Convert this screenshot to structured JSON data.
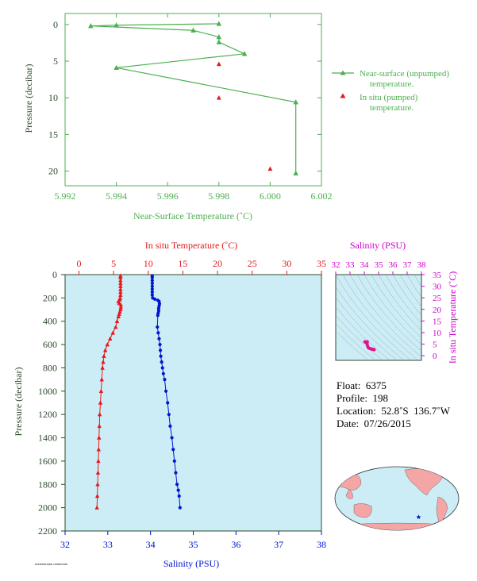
{
  "chart_data": [
    {
      "type": "line",
      "id": "near-surface",
      "xlabel": "Near-Surface Temperature (˚C)",
      "ylabel": "Pressure (decibar)",
      "xlim": [
        5.992,
        6.002
      ],
      "ylim": [
        22,
        -1.5
      ],
      "xticks": [
        "5.992",
        "5.994",
        "5.996",
        "5.998",
        "6.000",
        "6.002"
      ],
      "yticks": [
        "0",
        "5",
        "10",
        "15",
        "20"
      ],
      "xtick_values": [
        5.992,
        5.994,
        5.996,
        5.998,
        6.0,
        6.002
      ],
      "ytick_values": [
        0,
        5,
        10,
        15,
        20
      ],
      "series": [
        {
          "name": "Near-surface (unpumped) temperature.",
          "color": "#4caf50",
          "marker": "triangle",
          "x": [
            5.998,
            5.994,
            5.993,
            5.997,
            5.998,
            5.998,
            5.999,
            5.994,
            6.001,
            6.001
          ],
          "y": [
            -0.1,
            0.1,
            0.2,
            0.8,
            1.7,
            2.4,
            4.0,
            5.9,
            10.6,
            20.3
          ]
        },
        {
          "name": "In situ (pumped) temperature.",
          "color": "#e41a1c",
          "marker": "triangle",
          "x": [
            5.998,
            5.998,
            6.0
          ],
          "y": [
            5.4,
            10.0,
            19.7
          ]
        }
      ],
      "legend": [
        {
          "line1": "Near-surface (unpumped)",
          "line2": "temperature."
        },
        {
          "line1": "In situ (pumped)",
          "line2": "temperature."
        }
      ]
    },
    {
      "type": "line",
      "id": "profile",
      "top_xlabel": "In situ Temperature (˚C)",
      "bottom_xlabel": "Salinity (PSU)",
      "ylabel": "Pressure (decibar)",
      "temp_lim": [
        -2,
        35
      ],
      "sal_lim": [
        32,
        38
      ],
      "ylim": [
        2200,
        0
      ],
      "temp_ticks": [
        "0",
        "5",
        "10",
        "15",
        "20",
        "25",
        "30",
        "35"
      ],
      "temp_tick_values": [
        0,
        5,
        10,
        15,
        20,
        25,
        30,
        35
      ],
      "sal_ticks": [
        "32",
        "33",
        "34",
        "35",
        "36",
        "37",
        "38"
      ],
      "sal_tick_values": [
        32,
        33,
        34,
        35,
        36,
        37,
        38
      ],
      "yticks": [
        "0",
        "200",
        "400",
        "600",
        "800",
        "1000",
        "1200",
        "1400",
        "1600",
        "1800",
        "2000",
        "2200"
      ],
      "ytick_values": [
        0,
        200,
        400,
        600,
        800,
        1000,
        1200,
        1400,
        1600,
        1800,
        2000,
        2200
      ],
      "background": "#cdedf6",
      "temperature": {
        "color": "#e41a1c",
        "marker": "triangle",
        "x": [
          6.0,
          6.0,
          6.0,
          6.0,
          6.0,
          6.0,
          6.0,
          6.0,
          5.95,
          5.9,
          5.7,
          5.8,
          6.05,
          6.05,
          6.0,
          5.9,
          5.8,
          5.7,
          5.5,
          5.3,
          4.9,
          4.5,
          4.1,
          3.8,
          3.6,
          3.5,
          3.4,
          3.3,
          3.2,
          3.1,
          3.0,
          2.95,
          2.9,
          2.85,
          2.8,
          2.75,
          2.7,
          2.65,
          2.6
        ],
        "y": [
          10,
          25,
          50,
          75,
          100,
          125,
          150,
          175,
          200,
          215,
          230,
          245,
          260,
          280,
          300,
          320,
          340,
          360,
          400,
          450,
          500,
          550,
          600,
          650,
          700,
          750,
          800,
          900,
          1000,
          1100,
          1200,
          1300,
          1400,
          1500,
          1600,
          1700,
          1800,
          1900,
          2000
        ]
      },
      "salinity": {
        "color": "#0015d0",
        "marker": "dot",
        "x": [
          34.04,
          34.04,
          34.04,
          34.04,
          34.04,
          34.04,
          34.04,
          34.04,
          34.05,
          34.1,
          34.17,
          34.2,
          34.21,
          34.2,
          34.19,
          34.19,
          34.18,
          34.17,
          34.16,
          34.18,
          34.2,
          34.22,
          34.23,
          34.24,
          34.26,
          34.28,
          34.3,
          34.33,
          34.36,
          34.4,
          34.43,
          34.46,
          34.5,
          34.53,
          34.56,
          34.59,
          34.62,
          34.65,
          34.67,
          34.69
        ],
        "y": [
          10,
          25,
          50,
          75,
          100,
          125,
          150,
          175,
          200,
          210,
          220,
          230,
          250,
          270,
          290,
          310,
          330,
          350,
          450,
          500,
          550,
          600,
          650,
          700,
          750,
          800,
          850,
          900,
          1000,
          1100,
          1200,
          1300,
          1400,
          1500,
          1600,
          1700,
          1800,
          1850,
          1900,
          2000
        ]
      }
    },
    {
      "type": "scatter",
      "id": "ts-diagram",
      "title": "Salinity (PSU)",
      "ylabel": "In situ Temperature (˚C)",
      "xlim": [
        32,
        38
      ],
      "ylim": [
        -2,
        35
      ],
      "xticks": [
        "32",
        "33",
        "34",
        "35",
        "36",
        "37",
        "38"
      ],
      "xtick_values": [
        32,
        33,
        34,
        35,
        36,
        37,
        38
      ],
      "yticks": [
        "0",
        "5",
        "10",
        "15",
        "20",
        "25",
        "30",
        "35"
      ],
      "ytick_values": [
        0,
        5,
        10,
        15,
        20,
        25,
        30,
        35
      ],
      "color": "#e0138f",
      "x": [
        34.04,
        34.05,
        34.1,
        34.17,
        34.2,
        34.21,
        34.19,
        34.17,
        34.18,
        34.22,
        34.26,
        34.3,
        34.36,
        34.43,
        34.5,
        34.56,
        34.62,
        34.67,
        34.69
      ],
      "y": [
        6.0,
        5.95,
        5.9,
        5.7,
        5.8,
        6.05,
        5.9,
        5.5,
        5.3,
        4.5,
        3.6,
        3.4,
        3.2,
        3.0,
        2.9,
        2.8,
        2.7,
        2.65,
        2.6
      ]
    }
  ],
  "info": {
    "float": "Float:  6375",
    "profile": "Profile:  198",
    "location": "Location:  52.8˚S  136.7˚W",
    "date": "Date:  07/26/2015"
  },
  "map": {
    "ocean_color": "#cdedf6",
    "land_color": "#f4a6a6",
    "marker_color": "#0015d0",
    "marker_lon": -136.7,
    "marker_lat": -52.8
  },
  "footer": "nnnnnnnnnn  nnnnnnnn"
}
